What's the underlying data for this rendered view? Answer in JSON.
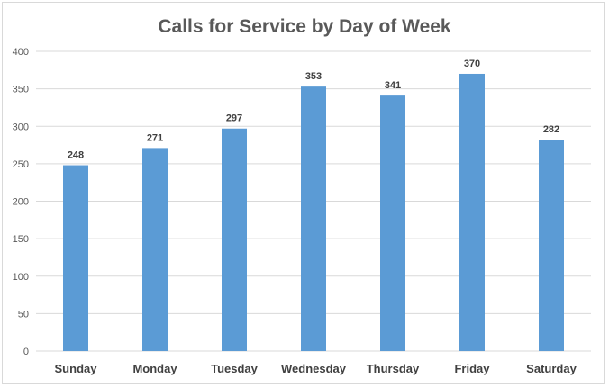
{
  "chart_data": {
    "type": "bar",
    "title": "Calls for Service by Day of Week",
    "xlabel": "",
    "ylabel": "",
    "categories": [
      "Sunday",
      "Monday",
      "Tuesday",
      "Wednesday",
      "Thursday",
      "Friday",
      "Saturday"
    ],
    "values": [
      248,
      271,
      297,
      353,
      341,
      370,
      282
    ],
    "data_labels": [
      "248",
      "271",
      "297",
      "353",
      "341",
      "370",
      "282"
    ],
    "ylim": [
      0,
      400
    ],
    "yticks": [
      0,
      50,
      100,
      150,
      200,
      250,
      300,
      350,
      400
    ],
    "ytick_labels": [
      "0",
      "50",
      "100",
      "150",
      "200",
      "250",
      "300",
      "350",
      "400"
    ],
    "grid": true,
    "legend": "none",
    "colors": {
      "bar": "#5b9bd5",
      "grid": "#d9d9d9",
      "text": "#595959"
    }
  }
}
